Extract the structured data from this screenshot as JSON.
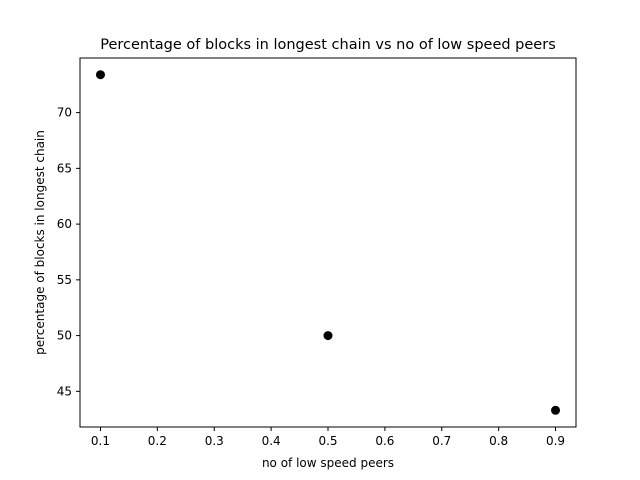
{
  "chart_data": {
    "type": "scatter",
    "title": "Percentage of blocks in longest chain vs no of low speed peers",
    "xlabel": "no of low speed peers",
    "ylabel": "percentage of blocks in longest chain",
    "xlim": [
      0.064,
      0.936
    ],
    "ylim": [
      41.8,
      74.9
    ],
    "xticks": [
      0.1,
      0.2,
      0.3,
      0.4,
      0.5,
      0.6,
      0.7,
      0.8,
      0.9
    ],
    "xtick_labels": [
      "0.1",
      "0.2",
      "0.3",
      "0.4",
      "0.5",
      "0.6",
      "0.7",
      "0.8",
      "0.9"
    ],
    "yticks": [
      45,
      50,
      55,
      60,
      65,
      70
    ],
    "ytick_labels": [
      "45",
      "50",
      "55",
      "60",
      "65",
      "70"
    ],
    "grid": false,
    "marker_color": "#000000",
    "points": [
      {
        "x": 0.1,
        "y": 73.4
      },
      {
        "x": 0.5,
        "y": 50.0
      },
      {
        "x": 0.9,
        "y": 43.3
      }
    ]
  }
}
